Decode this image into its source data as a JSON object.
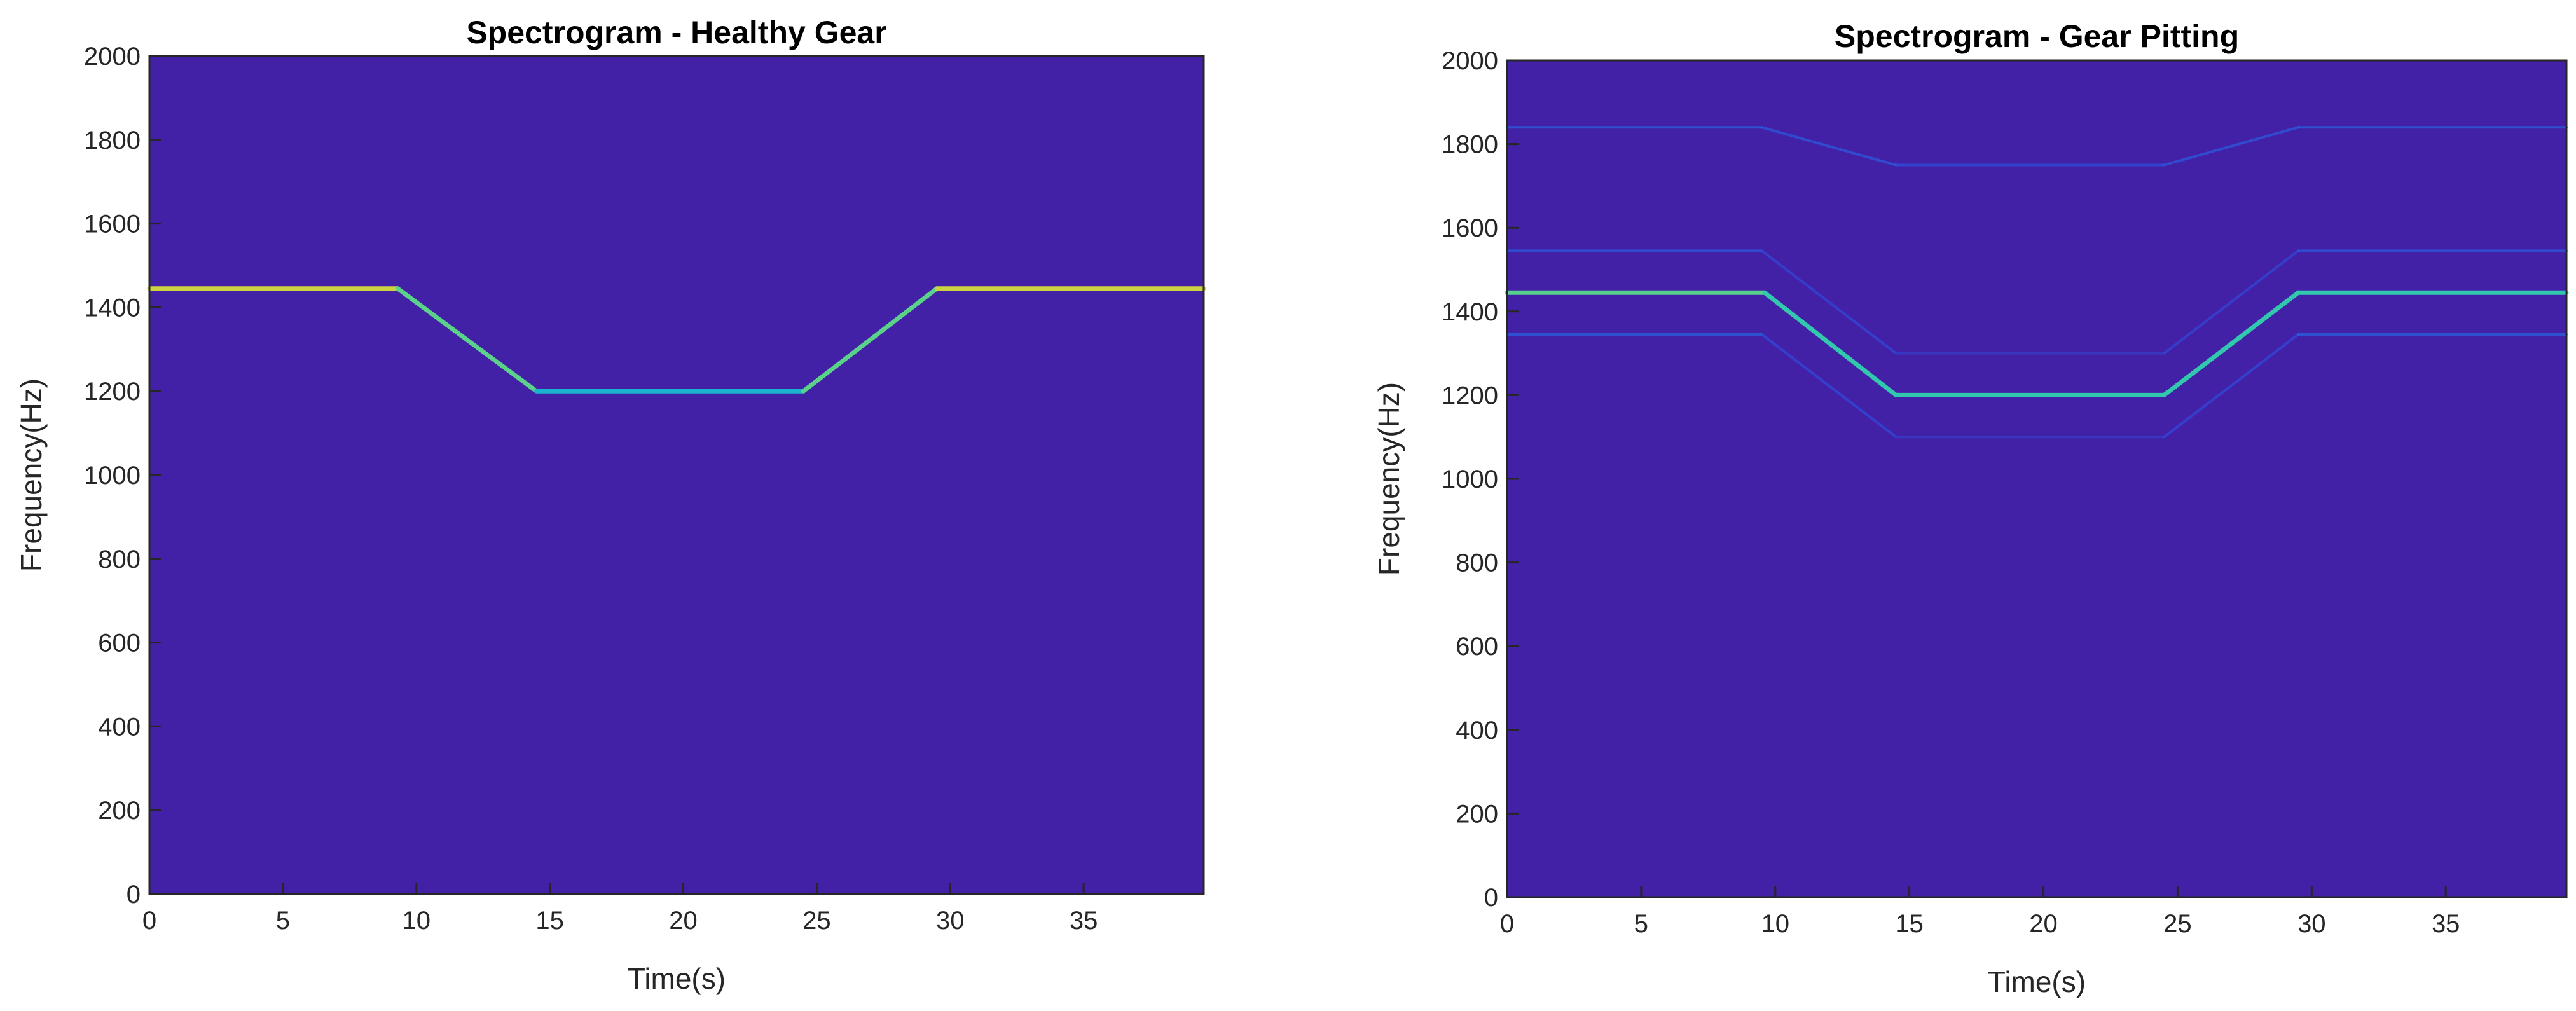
{
  "colors": {
    "background": "#ffffff",
    "plot_background": "#4321a6",
    "axis": "#262626",
    "colormap": [
      "#3e26a8",
      "#2f4bdc",
      "#1b8fe8",
      "#19c2c4",
      "#6bd67c",
      "#d5d23c",
      "#f9fb14"
    ]
  },
  "chart_data": [
    {
      "type": "heatmap",
      "title": "Spectrogram - Healthy Gear",
      "xlabel": "Time(s)",
      "ylabel": "Frequency(Hz)",
      "xlim": [
        0,
        39.5
      ],
      "ylim": [
        0,
        2000
      ],
      "xticks": [
        "0",
        "5",
        "10",
        "15",
        "20",
        "25",
        "30",
        "35"
      ],
      "yticks": [
        "0",
        "200",
        "400",
        "600",
        "800",
        "1000",
        "1200",
        "1400",
        "1600",
        "1800",
        "2000"
      ],
      "grid": false,
      "legend": "none",
      "series": [
        {
          "role": "dominant mesh frequency",
          "points": [
            [
              0,
              1445
            ],
            [
              9.3,
              1445
            ],
            [
              14.5,
              1200
            ],
            [
              24.5,
              1200
            ],
            [
              29.5,
              1445
            ],
            [
              39.5,
              1445
            ]
          ],
          "intensity": [
            0.82,
            0.82,
            0.45,
            0.45,
            0.82,
            0.82
          ]
        }
      ]
    },
    {
      "type": "heatmap",
      "title": "Spectrogram - Gear Pitting",
      "xlabel": "Time(s)",
      "ylabel": "Frequency(Hz)",
      "xlim": [
        0,
        39.5
      ],
      "ylim": [
        0,
        2000
      ],
      "xticks": [
        "0",
        "5",
        "10",
        "15",
        "20",
        "25",
        "30",
        "35"
      ],
      "yticks": [
        "0",
        "200",
        "400",
        "600",
        "800",
        "1000",
        "1200",
        "1400",
        "1600",
        "1800",
        "2000"
      ],
      "grid": false,
      "legend": "none",
      "series": [
        {
          "role": "dominant mesh frequency",
          "points": [
            [
              0,
              1445
            ],
            [
              9.6,
              1445
            ],
            [
              14.5,
              1200
            ],
            [
              24.5,
              1200
            ],
            [
              29.5,
              1445
            ],
            [
              39.5,
              1445
            ]
          ],
          "intensity": [
            0.7,
            0.55,
            0.55,
            0.55,
            0.55,
            0.55
          ]
        },
        {
          "role": "upper harmonic",
          "points": [
            [
              0,
              1840
            ],
            [
              9.5,
              1840
            ],
            [
              14.5,
              1750
            ],
            [
              24.5,
              1750
            ],
            [
              29.5,
              1840
            ],
            [
              39.5,
              1840
            ]
          ],
          "intensity": [
            0.22,
            0.22,
            0.18,
            0.18,
            0.22,
            0.22
          ]
        },
        {
          "role": "upper sideband",
          "points": [
            [
              0,
              1545
            ],
            [
              9.5,
              1545
            ],
            [
              14.5,
              1300
            ],
            [
              24.5,
              1300
            ],
            [
              29.5,
              1545
            ],
            [
              39.5,
              1545
            ]
          ],
          "intensity": [
            0.2,
            0.2,
            0.1,
            0.1,
            0.2,
            0.2
          ]
        },
        {
          "role": "lower sideband",
          "points": [
            [
              0,
              1345
            ],
            [
              9.5,
              1345
            ],
            [
              14.5,
              1100
            ],
            [
              24.5,
              1100
            ],
            [
              29.5,
              1345
            ],
            [
              39.5,
              1345
            ]
          ],
          "intensity": [
            0.22,
            0.22,
            0.1,
            0.1,
            0.22,
            0.22
          ]
        }
      ]
    }
  ]
}
